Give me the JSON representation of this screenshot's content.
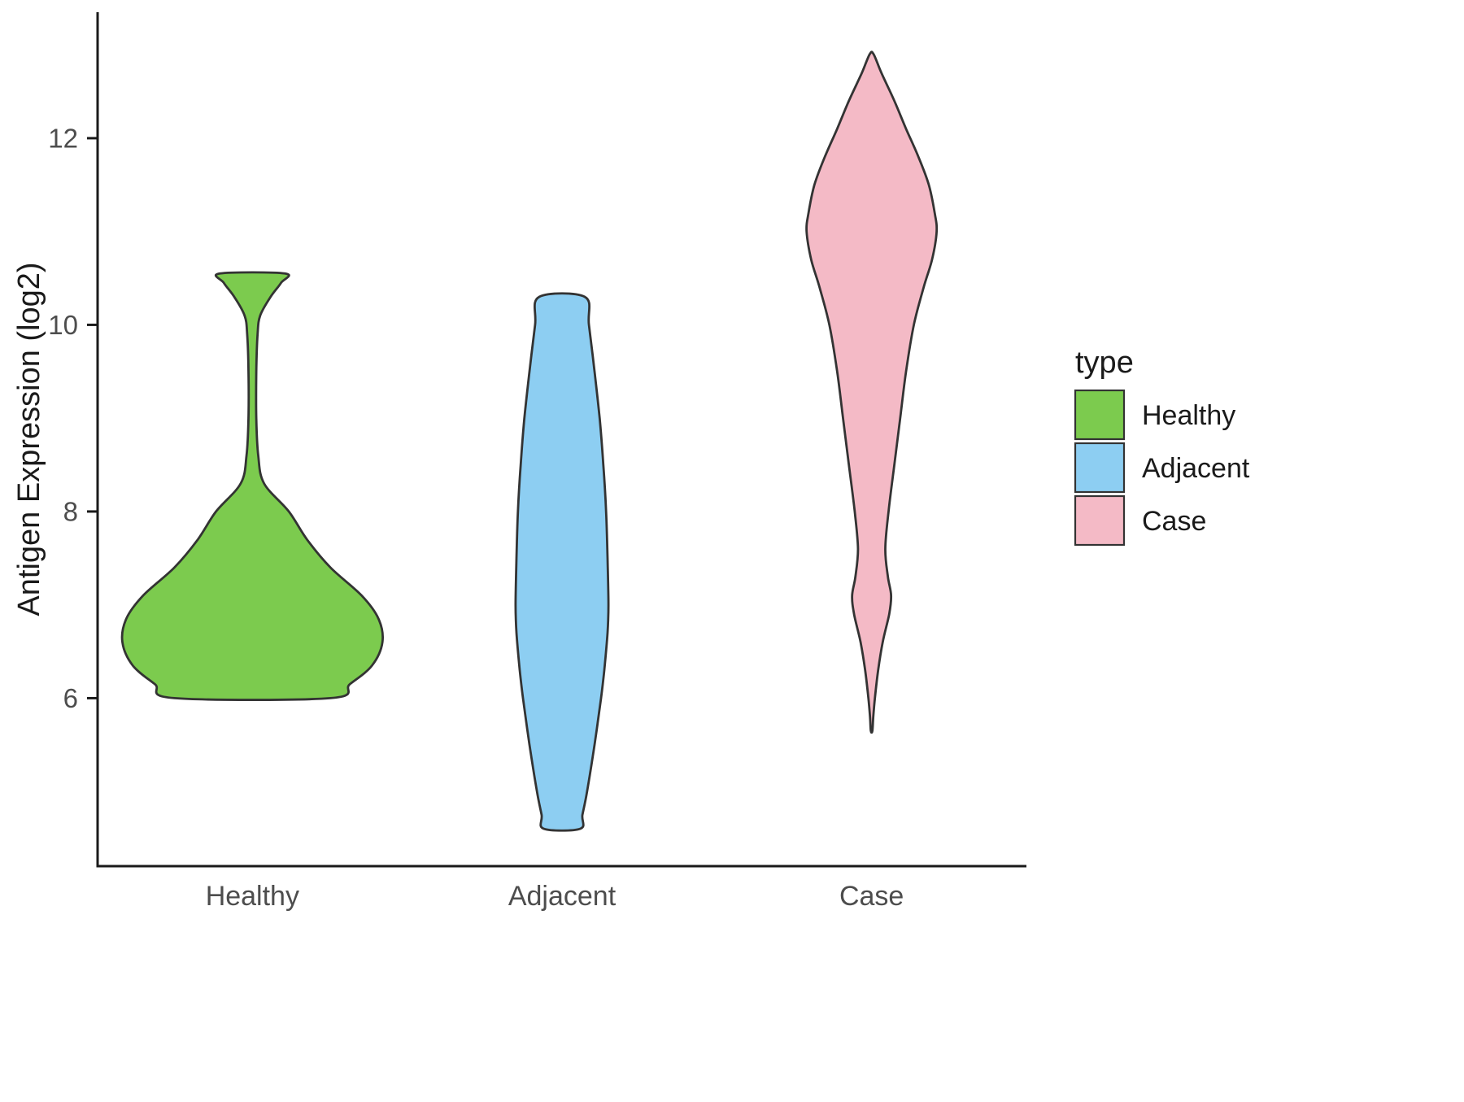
{
  "chart_data": {
    "type": "violin",
    "title": "",
    "xlabel": "",
    "ylabel": "Antigen Expression (log2)",
    "categories": [
      "Healthy",
      "Adjacent",
      "Case"
    ],
    "yticks": [
      6,
      8,
      10,
      12
    ],
    "ylim": [
      4.2,
      13.35
    ],
    "grid": false,
    "background": "#ffffff",
    "axis_color": "#1A1A1A",
    "tick_text_color": "#4D4D4D",
    "label_text_color": "#1A1A1A",
    "outline_color": "#333333",
    "legend": {
      "title": "type",
      "position": "right",
      "entries": [
        {
          "label": "Healthy",
          "color": "#7CCB4E"
        },
        {
          "label": "Adjacent",
          "color": "#8DCEF2"
        },
        {
          "label": "Case",
          "color": "#F4BAC6"
        }
      ]
    },
    "violins": [
      {
        "name": "Healthy",
        "color": "#7CCB4E",
        "max_width_frac": 0.84,
        "y_range": [
          6.0,
          10.55
        ],
        "flat_top": true,
        "flat_bottom": true,
        "profile": [
          [
            10.55,
            0.25
          ],
          [
            10.45,
            0.22
          ],
          [
            10.3,
            0.14
          ],
          [
            10.1,
            0.06
          ],
          [
            9.9,
            0.04
          ],
          [
            9.5,
            0.03
          ],
          [
            9.0,
            0.03
          ],
          [
            8.6,
            0.045
          ],
          [
            8.3,
            0.09
          ],
          [
            8.0,
            0.28
          ],
          [
            7.7,
            0.42
          ],
          [
            7.4,
            0.6
          ],
          [
            7.1,
            0.84
          ],
          [
            6.85,
            0.97
          ],
          [
            6.6,
            1.0
          ],
          [
            6.35,
            0.92
          ],
          [
            6.15,
            0.75
          ],
          [
            6.0,
            0.6
          ]
        ]
      },
      {
        "name": "Adjacent",
        "color": "#8DCEF2",
        "max_width_frac": 0.3,
        "y_range": [
          4.6,
          10.3
        ],
        "flat_top": true,
        "flat_bottom": true,
        "profile": [
          [
            10.3,
            0.49
          ],
          [
            10.0,
            0.58
          ],
          [
            9.5,
            0.7
          ],
          [
            9.0,
            0.81
          ],
          [
            8.5,
            0.89
          ],
          [
            8.0,
            0.95
          ],
          [
            7.5,
            0.98
          ],
          [
            7.0,
            1.0
          ],
          [
            6.7,
            0.98
          ],
          [
            6.3,
            0.91
          ],
          [
            6.0,
            0.84
          ],
          [
            5.5,
            0.7
          ],
          [
            5.0,
            0.54
          ],
          [
            4.75,
            0.44
          ],
          [
            4.6,
            0.39
          ]
        ]
      },
      {
        "name": "Case",
        "color": "#F4BAC6",
        "max_width_frac": 0.42,
        "y_range": [
          5.65,
          12.9
        ],
        "flat_top": false,
        "flat_bottom": false,
        "profile": [
          [
            12.9,
            0.03
          ],
          [
            12.7,
            0.15
          ],
          [
            12.4,
            0.35
          ],
          [
            12.1,
            0.53
          ],
          [
            11.8,
            0.72
          ],
          [
            11.5,
            0.88
          ],
          [
            11.2,
            0.97
          ],
          [
            11.0,
            1.0
          ],
          [
            10.7,
            0.93
          ],
          [
            10.4,
            0.8
          ],
          [
            10.0,
            0.65
          ],
          [
            9.5,
            0.53
          ],
          [
            9.0,
            0.44
          ],
          [
            8.5,
            0.35
          ],
          [
            8.0,
            0.26
          ],
          [
            7.6,
            0.21
          ],
          [
            7.3,
            0.25
          ],
          [
            7.1,
            0.3
          ],
          [
            6.9,
            0.27
          ],
          [
            6.6,
            0.17
          ],
          [
            6.3,
            0.1
          ],
          [
            6.0,
            0.05
          ],
          [
            5.8,
            0.025
          ],
          [
            5.65,
            0.012
          ]
        ]
      }
    ]
  }
}
